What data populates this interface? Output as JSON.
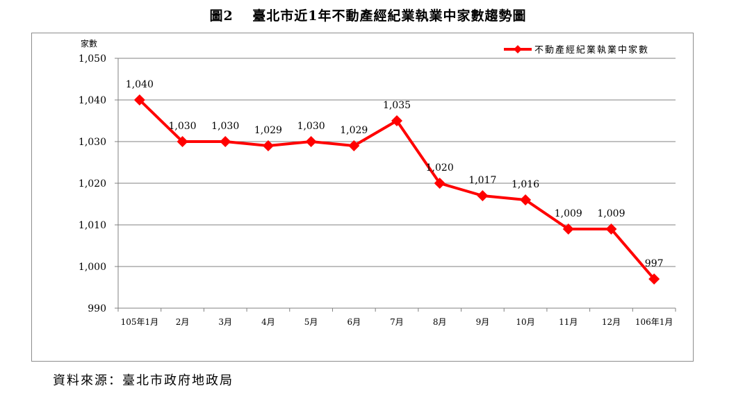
{
  "figure": {
    "title": "圖2　 臺北市近1年不動產經紀業執業中家數趨勢圖",
    "source": "資料來源：臺北市政府地政局"
  },
  "chart_data": {
    "type": "line",
    "ylabel": "家數",
    "xlabel": "",
    "ylim": [
      990,
      1050
    ],
    "yticks": [
      "990",
      "1,000",
      "1,010",
      "1,020",
      "1,030",
      "1,040",
      "1,050"
    ],
    "ytick_values": [
      990,
      1000,
      1010,
      1020,
      1030,
      1040,
      1050
    ],
    "grid": true,
    "legend_position": "top-right",
    "categories": [
      "105年1月",
      "2月",
      "3月",
      "4月",
      "5月",
      "6月",
      "7月",
      "8月",
      "9月",
      "10月",
      "11月",
      "12月",
      "106年1月"
    ],
    "series": [
      {
        "name": "不動產經紀業執業中家數",
        "color": "#ff0000",
        "marker": "diamond",
        "values": [
          1040,
          1030,
          1030,
          1029,
          1030,
          1029,
          1035,
          1020,
          1017,
          1016,
          1009,
          1009,
          997
        ],
        "labels": [
          "1,040",
          "1,030",
          "1,030",
          "1,029",
          "1,030",
          "1,029",
          "1,035",
          "1,020",
          "1,017",
          "1,016",
          "1,009",
          "1,009",
          "997"
        ]
      }
    ]
  }
}
